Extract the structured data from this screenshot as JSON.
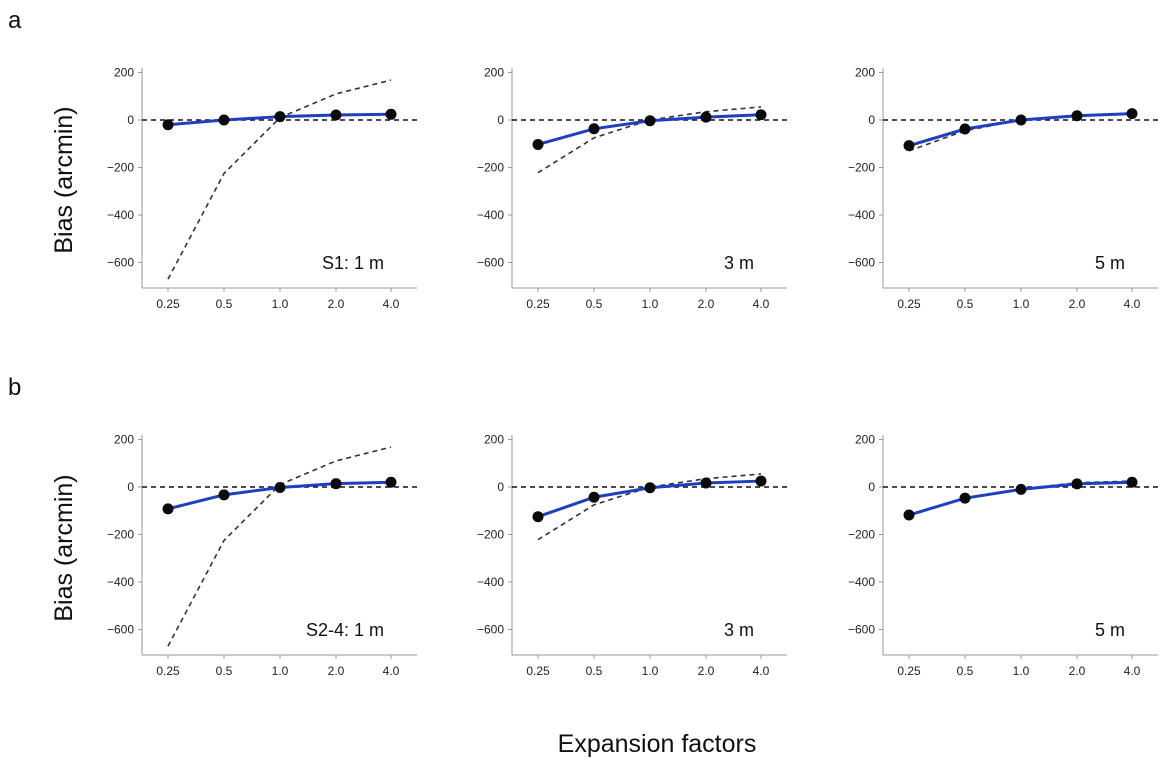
{
  "figure": {
    "panel_labels": [
      "a",
      "b"
    ],
    "row_ylabel": "Bias (arcmin)",
    "shared_xlabel": "Expansion factors"
  },
  "chart_data": [
    {
      "type": "line",
      "row": 0,
      "col": 0,
      "annotation": "S1: 1 m",
      "categories": [
        "0.25",
        "0.5",
        "1.0",
        "2.0",
        "4.0"
      ],
      "yticks": [
        200,
        0,
        -200,
        -400,
        -600
      ],
      "ylim": [
        -700,
        200
      ],
      "series": [
        {
          "style": "dashed",
          "color": "#333333",
          "values": [
            -670,
            -225,
            10,
            110,
            168
          ]
        },
        {
          "style": "solid-markers",
          "color": "#1f3fc0",
          "values": [
            -20,
            0,
            14,
            21,
            24
          ]
        }
      ]
    },
    {
      "type": "line",
      "row": 0,
      "col": 1,
      "annotation": "3 m",
      "categories": [
        "0.25",
        "0.5",
        "1.0",
        "2.0",
        "4.0"
      ],
      "yticks": [
        200,
        0,
        -200,
        -400,
        -600
      ],
      "ylim": [
        -700,
        200
      ],
      "series": [
        {
          "style": "dashed",
          "color": "#333333",
          "values": [
            -222,
            -75,
            0,
            35,
            55
          ]
        },
        {
          "style": "solid-markers",
          "color": "#1f3fc0",
          "values": [
            -103,
            -37,
            -3,
            12,
            22
          ]
        }
      ]
    },
    {
      "type": "line",
      "row": 0,
      "col": 2,
      "annotation": "5 m",
      "categories": [
        "0.25",
        "0.5",
        "1.0",
        "2.0",
        "4.0"
      ],
      "yticks": [
        200,
        0,
        -200,
        -400,
        -600
      ],
      "ylim": [
        -700,
        200
      ],
      "series": [
        {
          "style": "dashed",
          "color": "#333333",
          "values": [
            -130,
            -45,
            0,
            20,
            28
          ]
        },
        {
          "style": "solid-markers",
          "color": "#1f3fc0",
          "values": [
            -108,
            -38,
            0,
            18,
            27
          ]
        }
      ]
    },
    {
      "type": "line",
      "row": 1,
      "col": 0,
      "annotation": "S2-4: 1 m",
      "categories": [
        "0.25",
        "0.5",
        "1.0",
        "2.0",
        "4.0"
      ],
      "yticks": [
        200,
        0,
        -200,
        -400,
        -600
      ],
      "ylim": [
        -700,
        200
      ],
      "series": [
        {
          "style": "dashed",
          "color": "#333333",
          "values": [
            -670,
            -225,
            10,
            110,
            168
          ]
        },
        {
          "style": "solid-markers",
          "color": "#1f3fc0",
          "values": [
            -92,
            -33,
            -2,
            14,
            20
          ]
        }
      ]
    },
    {
      "type": "line",
      "row": 1,
      "col": 1,
      "annotation": "3 m",
      "categories": [
        "0.25",
        "0.5",
        "1.0",
        "2.0",
        "4.0"
      ],
      "yticks": [
        200,
        0,
        -200,
        -400,
        -600
      ],
      "ylim": [
        -700,
        200
      ],
      "series": [
        {
          "style": "dashed",
          "color": "#333333",
          "values": [
            -222,
            -75,
            0,
            35,
            55
          ]
        },
        {
          "style": "solid-markers",
          "color": "#1f3fc0",
          "values": [
            -125,
            -43,
            -3,
            17,
            25
          ]
        }
      ]
    },
    {
      "type": "line",
      "row": 1,
      "col": 2,
      "annotation": "5 m",
      "categories": [
        "0.25",
        "0.5",
        "1.0",
        "2.0",
        "4.0"
      ],
      "yticks": [
        200,
        0,
        -200,
        -400,
        -600
      ],
      "ylim": [
        -700,
        200
      ],
      "series": [
        {
          "style": "dashed",
          "color": "#333333",
          "values": [
            -118,
            -45,
            -8,
            18,
            25
          ]
        },
        {
          "style": "solid-markers",
          "color": "#1f3fc0",
          "values": [
            -118,
            -47,
            -10,
            13,
            20
          ]
        }
      ]
    }
  ]
}
